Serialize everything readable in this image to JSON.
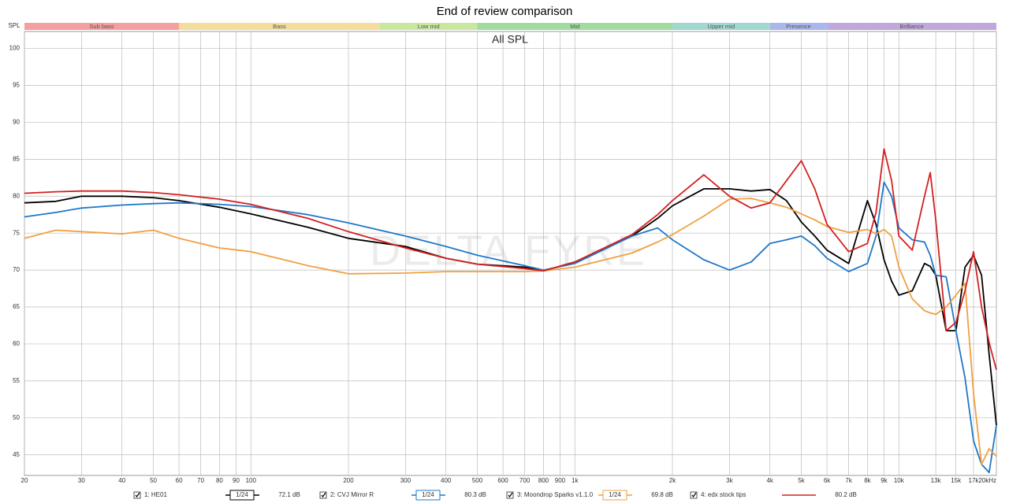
{
  "chart_data": {
    "type": "line",
    "title": "End of review comparison",
    "subtitle": "All SPL",
    "y_label": "SPL",
    "watermark": "DELTA FYRE",
    "log_x": true,
    "grid": true,
    "xlim": [
      20,
      20000
    ],
    "ylim": [
      42.2,
      102.3
    ],
    "yticks": [
      45,
      50,
      55,
      60,
      65,
      70,
      75,
      80,
      85,
      90,
      95,
      100
    ],
    "xticks": [
      20,
      30,
      40,
      50,
      60,
      70,
      80,
      90,
      100,
      200,
      300,
      400,
      500,
      600,
      700,
      800,
      900,
      {
        "value": 1000,
        "label": "1k"
      },
      {
        "value": 2000,
        "label": "2k"
      },
      {
        "value": 3000,
        "label": "3k"
      },
      {
        "value": 4000,
        "label": "4k"
      },
      {
        "value": 5000,
        "label": "5k"
      },
      {
        "value": 6000,
        "label": "6k"
      },
      {
        "value": 7000,
        "label": "7k"
      },
      {
        "value": 8000,
        "label": "8k"
      },
      {
        "value": 9000,
        "label": "9k"
      },
      {
        "value": 10000,
        "label": "10k"
      },
      {
        "value": 13000,
        "label": "13k"
      },
      {
        "value": 15000,
        "label": "15k"
      },
      {
        "value": 17000,
        "label": "17k"
      },
      {
        "value": 20000,
        "label": "20kHz"
      }
    ],
    "bands": [
      {
        "name": "Sub bass",
        "start": 20,
        "end": 60,
        "color": "#f4a0a0"
      },
      {
        "name": "Bass",
        "start": 60,
        "end": 250,
        "color": "#f4dc9c"
      },
      {
        "name": "Low mid",
        "start": 250,
        "end": 500,
        "color": "#c8e8a0"
      },
      {
        "name": "Mid",
        "start": 500,
        "end": 2000,
        "color": "#a0dca0"
      },
      {
        "name": "Upper mid",
        "start": 2000,
        "end": 4000,
        "color": "#a0d8d0"
      },
      {
        "name": "Presence",
        "start": 4000,
        "end": 6000,
        "color": "#a8b8ec"
      },
      {
        "name": "Brilliance",
        "start": 6000,
        "end": 20000,
        "color": "#c0a8dc"
      }
    ],
    "x": [
      20,
      25,
      30,
      40,
      50,
      60,
      80,
      100,
      150,
      200,
      300,
      400,
      500,
      700,
      800,
      1000,
      1500,
      1800,
      2000,
      2500,
      3000,
      3500,
      4000,
      4500,
      5000,
      5500,
      6000,
      7000,
      8000,
      8500,
      9000,
      9500,
      10000,
      11000,
      12000,
      12500,
      13000,
      14000,
      15000,
      16000,
      17000,
      18000,
      19000,
      20000
    ],
    "series": [
      {
        "name": "1: HE01",
        "color": "#000000",
        "smoothing": "1/24",
        "level": "72.1 dB",
        "values": [
          79.1,
          79.3,
          80.0,
          80.0,
          79.8,
          79.4,
          78.5,
          77.6,
          75.8,
          74.3,
          73.2,
          71.6,
          70.8,
          70.4,
          69.9,
          71.1,
          74.6,
          77.0,
          78.7,
          81.0,
          81.0,
          80.7,
          80.9,
          79.4,
          76.5,
          74.6,
          72.7,
          70.9,
          79.4,
          76.2,
          71.4,
          68.5,
          66.6,
          67.2,
          70.9,
          70.5,
          69.3,
          61.8,
          61.8,
          70.4,
          72.0,
          69.3,
          58.6,
          49.0
        ]
      },
      {
        "name": "2: CVJ Mirror R",
        "color": "#1f78c8",
        "smoothing": "1/24",
        "level": "80.3 dB",
        "values": [
          77.2,
          77.8,
          78.4,
          78.8,
          79.0,
          79.1,
          78.9,
          78.6,
          77.5,
          76.4,
          74.6,
          73.2,
          72.0,
          70.6,
          70.0,
          70.9,
          74.6,
          75.7,
          74.1,
          71.4,
          70.0,
          71.1,
          73.6,
          74.1,
          74.6,
          73.3,
          71.6,
          69.8,
          70.9,
          74.6,
          81.9,
          80.0,
          75.7,
          74.1,
          73.8,
          72.0,
          69.3,
          69.1,
          61.8,
          55.4,
          46.9,
          43.7,
          42.6,
          49.0
        ]
      },
      {
        "name": "3: Moondrop Sparks v1.1.0",
        "color": "#f0a040",
        "smoothing": "1/24",
        "level": "69.8 dB",
        "values": [
          74.3,
          75.4,
          75.2,
          74.9,
          75.4,
          74.3,
          73.0,
          72.5,
          70.6,
          69.5,
          69.6,
          69.8,
          69.8,
          69.8,
          69.9,
          70.4,
          72.3,
          73.8,
          74.8,
          77.3,
          79.6,
          79.7,
          79.1,
          78.5,
          77.6,
          76.8,
          75.9,
          75.1,
          75.5,
          74.9,
          75.5,
          74.6,
          70.4,
          66.1,
          64.5,
          64.2,
          64.0,
          65.0,
          66.6,
          68.2,
          53.3,
          43.7,
          45.8,
          44.8
        ]
      },
      {
        "name": "4: edx stock tips",
        "color": "#d42020",
        "level": "80.2 dB",
        "values": [
          80.4,
          80.6,
          80.7,
          80.7,
          80.5,
          80.2,
          79.6,
          78.9,
          77.0,
          75.2,
          73.0,
          71.6,
          70.8,
          70.2,
          69.9,
          71.1,
          74.8,
          77.5,
          79.4,
          82.9,
          80.0,
          78.4,
          79.1,
          82.1,
          84.8,
          81.0,
          76.2,
          72.5,
          73.6,
          77.8,
          86.4,
          82.1,
          74.6,
          72.7,
          80.0,
          83.2,
          76.8,
          61.8,
          62.9,
          67.2,
          72.5,
          65.0,
          60.2,
          56.5
        ]
      }
    ]
  }
}
